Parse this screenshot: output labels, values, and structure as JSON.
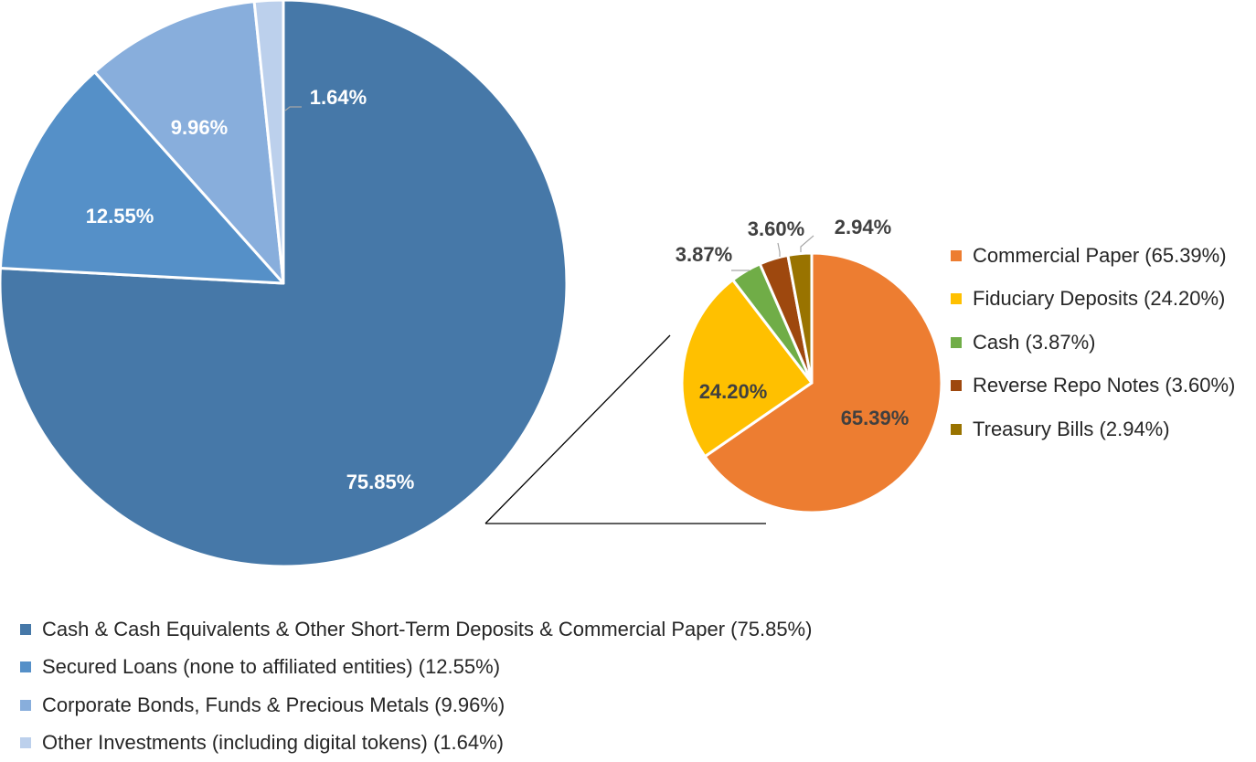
{
  "chart_data": [
    {
      "type": "pie",
      "title": "",
      "series": [
        {
          "categories": [
            "Cash & Cash Equivalents & Other Short-Term Deposits & Commercial Paper (75.85%)",
            "Secured Loans (none to affiliated entities) (12.55%)",
            "Corporate Bonds, Funds & Precious Metals (9.96%)",
            "Other Investments (including digital tokens) (1.64%)"
          ],
          "values": [
            75.85,
            12.55,
            9.96,
            1.64
          ],
          "data_labels": [
            "75.85%",
            "12.55%",
            "9.96%",
            "1.64%"
          ],
          "colors": [
            "#4678A8",
            "#5590C8",
            "#88AEDC",
            "#BCD0EC"
          ]
        }
      ],
      "legend": "bottom"
    },
    {
      "type": "pie",
      "title": "",
      "series": [
        {
          "categories": [
            "Commercial Paper (65.39%)",
            "Fiduciary Deposits (24.20%)",
            "Cash (3.87%)",
            "Reverse Repo Notes (3.60%)",
            "Treasury Bills (2.94%)"
          ],
          "values": [
            65.39,
            24.2,
            3.87,
            3.6,
            2.94
          ],
          "data_labels": [
            "65.39%",
            "24.20%",
            "3.87%",
            "3.60%",
            "2.94%"
          ],
          "colors": [
            "#ED7D31",
            "#FFC000",
            "#70AD47",
            "#9E480E",
            "#997300"
          ]
        }
      ],
      "legend": "right"
    }
  ]
}
